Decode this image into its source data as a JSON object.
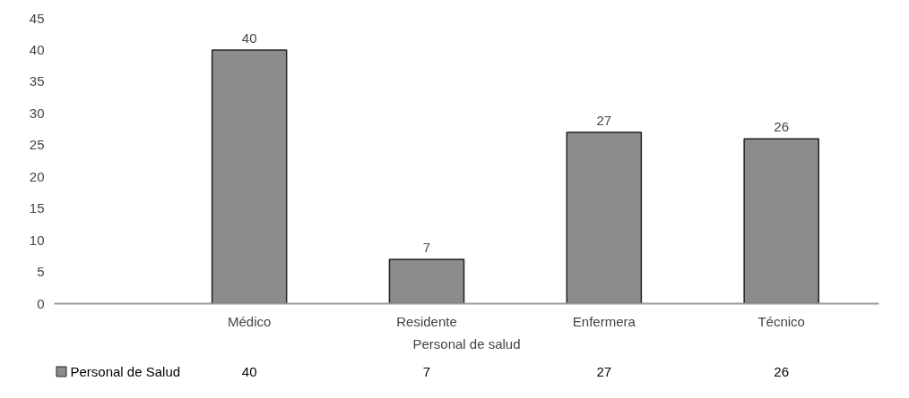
{
  "chart_data": {
    "type": "bar",
    "xlabel": "Personal de salud",
    "categories": [
      "Médico",
      "Residente",
      "Enfermera",
      "Técnico"
    ],
    "series": [
      {
        "name": "Personal de Salud",
        "color": "#8c8c8c",
        "values": [
          40,
          7,
          27,
          26
        ],
        "value_labels": [
          "40",
          "7",
          "27",
          "26"
        ]
      }
    ],
    "annotations": [
      "40",
      "7",
      "27",
      "26"
    ],
    "ylim": [
      0,
      45
    ],
    "yticks": [
      0,
      5,
      10,
      15,
      20,
      25,
      30,
      35,
      40,
      45
    ],
    "legend": "bottom",
    "grid": false
  }
}
